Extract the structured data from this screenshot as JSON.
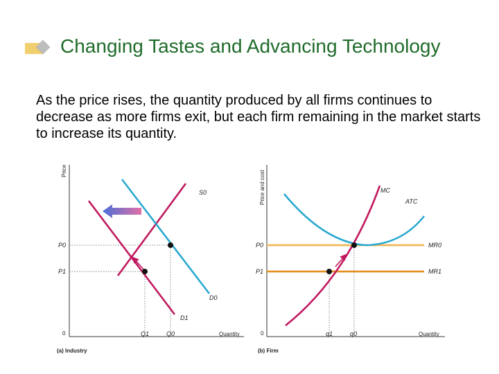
{
  "slide": {
    "title": "Changing Tastes and Advancing Technology",
    "body": "As the price rises, the quantity produced by all firms continues to decrease as more firms exit, but each firm remaining in the market starts to increase its quantity."
  },
  "colors": {
    "title_green": "#1f6b2a",
    "bullet_yellow": "#f2cf6e",
    "bullet_gray": "#bdbdbd",
    "curve_cyan": "#2aa8d0",
    "curve_magenta": "#c0185e",
    "line_orange_top": "#f0b75b",
    "line_orange_bottom": "#e49224",
    "arrow_blue": "#4a6fd8",
    "arrow_pink": "#d8608f"
  },
  "industry": {
    "y_axis_label": "Price",
    "x_axis_label": "Quantity",
    "origin": "0",
    "p0": "P0",
    "p1": "P1",
    "q0": "Q0",
    "q1": "Q1",
    "s0": "S0",
    "d0": "D0",
    "d1": "D1",
    "caption": "(a) Industry"
  },
  "firm": {
    "y_axis_label": "Price and cost",
    "x_axis_label": "Quantity",
    "origin": "0",
    "p0": "P0",
    "p1": "P1",
    "q0": "q0",
    "q1": "q1",
    "mc": "MC",
    "atc": "ATC",
    "mr0": "MR0",
    "mr1": "MR1",
    "caption": "(b) Firm"
  }
}
